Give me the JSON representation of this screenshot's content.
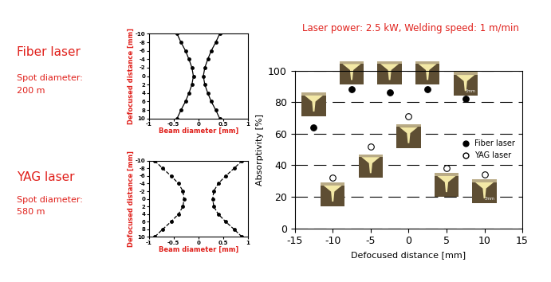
{
  "chart_data": [
    {
      "type": "line",
      "annotations": [
        "Fiber laser",
        "Spot diameter:",
        "200 m"
      ],
      "x_label": "Beam diameter [mm]",
      "y_label": "Defocused distance [mm]",
      "y": [
        -10,
        -8,
        -6,
        -4,
        -2,
        0,
        2,
        4,
        6,
        8,
        10
      ],
      "series": [
        {
          "color": "#000000",
          "marker": "circle",
          "line_style": "solid",
          "values": [
            0.43,
            0.35,
            0.26,
            0.19,
            0.13,
            0.1,
            0.13,
            0.19,
            0.26,
            0.35,
            0.43
          ]
        },
        {
          "color": "#000000",
          "marker": "circle",
          "line_style": "solid",
          "values": [
            -0.43,
            -0.35,
            -0.26,
            -0.19,
            -0.13,
            -0.1,
            -0.13,
            -0.19,
            -0.26,
            -0.35,
            -0.43
          ]
        }
      ],
      "xlim": [
        -1,
        1
      ],
      "xticks": [
        -1,
        -0.5,
        0,
        0.5,
        1
      ],
      "ylim": [
        10,
        -10
      ],
      "yticks": [
        -10,
        -8,
        -6,
        -4,
        -2,
        0,
        2,
        4,
        6,
        8,
        10
      ]
    },
    {
      "type": "line",
      "annotations": [
        "YAG laser",
        "Spot diameter:",
        "580 m"
      ],
      "x_label": "Beam diameter [mm]",
      "y_label": "Defocused distance [mm]",
      "y": [
        -10,
        -8,
        -6,
        -4,
        -2,
        0,
        2,
        4,
        6,
        8,
        10
      ],
      "series": [
        {
          "color": "#000000",
          "marker": "circle",
          "line_style": "dashed",
          "values": [
            0.88,
            0.72,
            0.55,
            0.4,
            0.31,
            0.29,
            0.31,
            0.4,
            0.55,
            0.72,
            0.88
          ]
        },
        {
          "color": "#000000",
          "marker": "circle",
          "line_style": "dashed",
          "values": [
            -0.88,
            -0.72,
            -0.55,
            -0.4,
            -0.31,
            -0.29,
            -0.31,
            -0.4,
            -0.55,
            -0.72,
            -0.88
          ]
        }
      ],
      "xlim": [
        -1,
        1
      ],
      "xticks": [
        -1,
        -0.5,
        0,
        0.5,
        1
      ],
      "ylim": [
        10,
        -10
      ],
      "yticks": [
        -10,
        -8,
        -6,
        -4,
        -2,
        0,
        2,
        4,
        6,
        8,
        10
      ]
    },
    {
      "type": "scatter",
      "title": "Laser power: 2.5 kW, Welding speed: 1 m/min",
      "x_label": "Defocused distance [mm]",
      "y_label": "Absorptivity [%]",
      "photo_scale_label": "3mm",
      "series": [
        {
          "name": "Fiber laser",
          "color": "#000000",
          "marker": "circle",
          "x": [
            -12.5,
            -7.5,
            -2.5,
            2.5,
            7.5
          ],
          "values": [
            64,
            88,
            86,
            88,
            82
          ]
        },
        {
          "name": "YAG laser",
          "color": "#000000",
          "marker": "open_circle",
          "x": [
            -10,
            -5,
            0,
            5,
            10
          ],
          "values": [
            32,
            52,
            71,
            38,
            34
          ]
        }
      ],
      "xlim": [
        -15,
        15
      ],
      "xticks": [
        -15,
        -10,
        -5,
        0,
        5,
        10,
        15
      ],
      "ylim": [
        0,
        100
      ],
      "yticks": [
        0,
        20,
        40,
        60,
        80,
        100
      ],
      "grid": true,
      "legend": "center right"
    }
  ]
}
